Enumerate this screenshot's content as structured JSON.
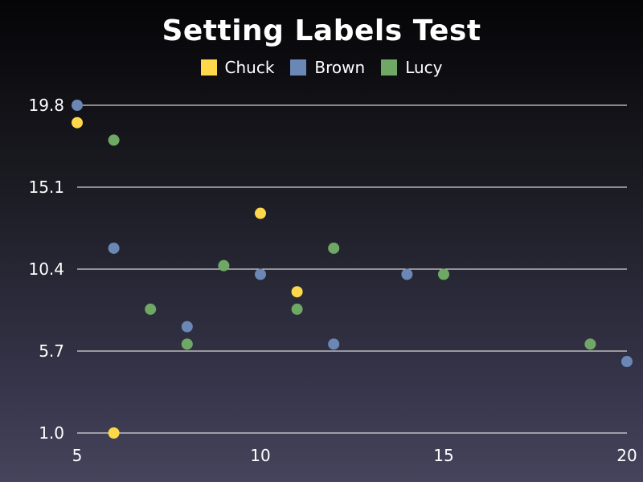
{
  "chart_data": {
    "type": "scatter",
    "title": "Setting Labels Test",
    "xlabel": "",
    "ylabel": "",
    "xlim": [
      5,
      20
    ],
    "ylim": [
      1.0,
      19.8
    ],
    "x_ticks": [
      "5",
      "10",
      "15",
      "20"
    ],
    "x_tick_values": [
      5,
      10,
      15,
      20
    ],
    "y_ticks": [
      "1.0",
      "5.7",
      "10.4",
      "15.1",
      "19.8"
    ],
    "y_tick_values": [
      1.0,
      5.7,
      10.4,
      15.1,
      19.8
    ],
    "grid": "horizontal",
    "legend_position": "top",
    "series": [
      {
        "name": "Chuck",
        "color": "#fed84a",
        "points": [
          [
            5,
            18.8
          ],
          [
            6,
            1.0
          ],
          [
            10,
            13.6
          ],
          [
            11,
            9.1
          ]
        ]
      },
      {
        "name": "Brown",
        "color": "#6a87b5",
        "points": [
          [
            5,
            19.8
          ],
          [
            6,
            11.6
          ],
          [
            8,
            7.1
          ],
          [
            10,
            10.1
          ],
          [
            12,
            6.1
          ],
          [
            14,
            10.1
          ],
          [
            20,
            5.1
          ]
        ]
      },
      {
        "name": "Lucy",
        "color": "#6fa864",
        "points": [
          [
            6,
            17.8
          ],
          [
            7,
            8.1
          ],
          [
            8,
            6.1
          ],
          [
            9,
            10.6
          ],
          [
            11,
            8.1
          ],
          [
            12,
            11.6
          ],
          [
            15,
            10.1
          ],
          [
            19,
            6.1
          ]
        ]
      }
    ]
  }
}
